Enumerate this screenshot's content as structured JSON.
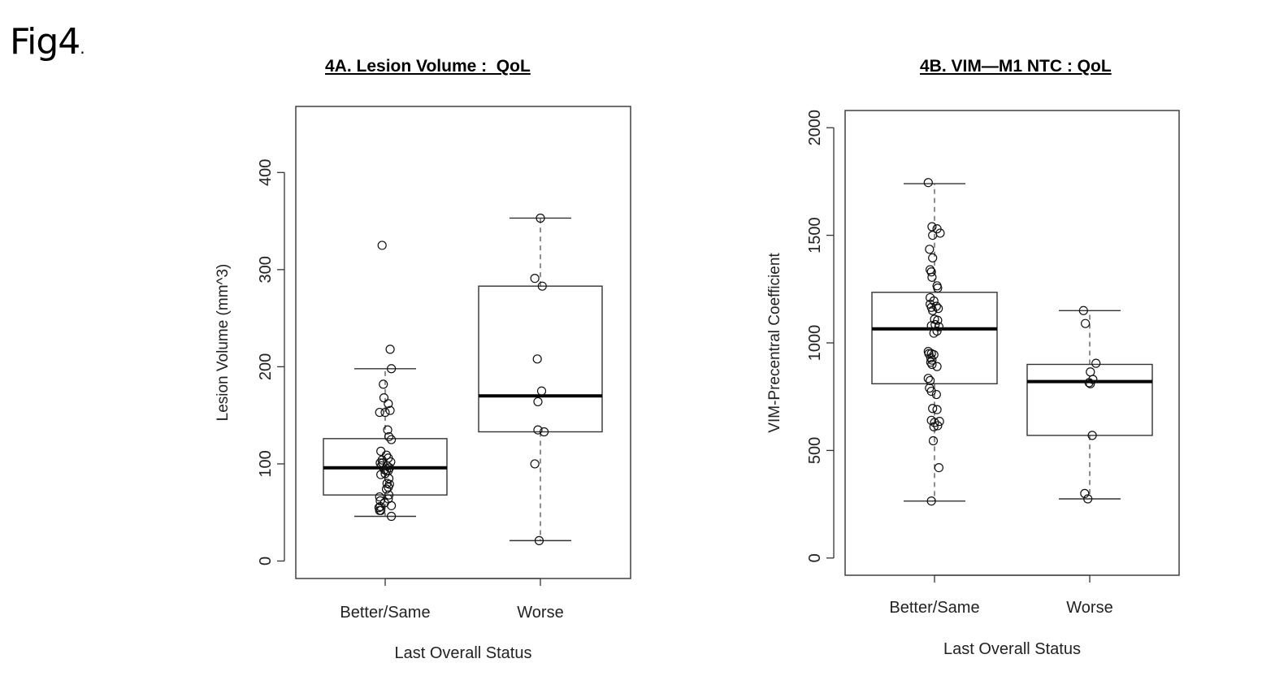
{
  "figure_label": "Fig4",
  "figure_label_dot": ".",
  "chart_data": [
    {
      "type": "box",
      "title": "4A. Lesion Volume :  QoL",
      "xlabel": "Last Overall Status",
      "ylabel": "Lesion Volume (mm^3)",
      "ylim": [
        -18,
        468
      ],
      "yticks": [
        0,
        100,
        200,
        300,
        400
      ],
      "categories": [
        "Better/Same",
        "Worse"
      ],
      "boxes": [
        {
          "name": "Better/Same",
          "whisker_low": 46,
          "q1": 68,
          "median": 96,
          "q3": 126,
          "whisker_high": 198
        },
        {
          "name": "Worse",
          "whisker_low": 21,
          "q1": 133,
          "median": 170,
          "q3": 283,
          "whisker_high": 353
        }
      ],
      "points": [
        [
          {
            "dx": -0.05,
            "y": 325
          },
          {
            "dx": 0.08,
            "y": 218
          },
          {
            "dx": 0.1,
            "y": 198
          },
          {
            "dx": -0.03,
            "y": 182
          },
          {
            "dx": -0.02,
            "y": 168
          },
          {
            "dx": 0.05,
            "y": 162
          },
          {
            "dx": -0.09,
            "y": 153
          },
          {
            "dx": 0.08,
            "y": 155
          },
          {
            "dx": 0.0,
            "y": 153
          },
          {
            "dx": 0.04,
            "y": 135
          },
          {
            "dx": 0.06,
            "y": 128
          },
          {
            "dx": 0.1,
            "y": 125
          },
          {
            "dx": -0.07,
            "y": 113
          },
          {
            "dx": 0.02,
            "y": 109
          },
          {
            "dx": 0.05,
            "y": 106
          },
          {
            "dx": -0.05,
            "y": 104
          },
          {
            "dx": -0.08,
            "y": 101
          },
          {
            "dx": -0.04,
            "y": 101
          },
          {
            "dx": 0.09,
            "y": 102
          },
          {
            "dx": -0.06,
            "y": 98
          },
          {
            "dx": 0.03,
            "y": 98
          },
          {
            "dx": 0.07,
            "y": 96
          },
          {
            "dx": -0.01,
            "y": 94
          },
          {
            "dx": 0.02,
            "y": 93
          },
          {
            "dx": 0.05,
            "y": 93
          },
          {
            "dx": -0.07,
            "y": 89
          },
          {
            "dx": 0.0,
            "y": 90
          },
          {
            "dx": 0.06,
            "y": 85
          },
          {
            "dx": 0.03,
            "y": 80
          },
          {
            "dx": 0.07,
            "y": 79
          },
          {
            "dx": 0.05,
            "y": 76
          },
          {
            "dx": 0.02,
            "y": 74
          },
          {
            "dx": 0.06,
            "y": 68
          },
          {
            "dx": -0.09,
            "y": 66
          },
          {
            "dx": 0.05,
            "y": 64
          },
          {
            "dx": -0.08,
            "y": 62
          },
          {
            "dx": -0.01,
            "y": 60
          },
          {
            "dx": 0.1,
            "y": 57
          },
          {
            "dx": -0.08,
            "y": 56
          },
          {
            "dx": -0.1,
            "y": 55
          },
          {
            "dx": -0.09,
            "y": 52
          },
          {
            "dx": -0.07,
            "y": 52
          },
          {
            "dx": 0.1,
            "y": 46
          }
        ],
        [
          {
            "dx": 0.0,
            "y": 353
          },
          {
            "dx": -0.09,
            "y": 291
          },
          {
            "dx": 0.03,
            "y": 283
          },
          {
            "dx": -0.05,
            "y": 208
          },
          {
            "dx": 0.02,
            "y": 175
          },
          {
            "dx": -0.04,
            "y": 164
          },
          {
            "dx": -0.04,
            "y": 135
          },
          {
            "dx": 0.06,
            "y": 133
          },
          {
            "dx": -0.09,
            "y": 100
          },
          {
            "dx": -0.02,
            "y": 21
          }
        ]
      ]
    },
    {
      "type": "box",
      "title": "4B. VIM—M1 NTC : QoL",
      "xlabel": "Last Overall Status",
      "ylabel": "VIM-Precentral Coefficient",
      "ylim": [
        -80,
        2080
      ],
      "yticks": [
        0,
        500,
        1000,
        1500,
        2000
      ],
      "categories": [
        "Better/Same",
        "Worse"
      ],
      "boxes": [
        {
          "name": "Better/Same",
          "whisker_low": 265,
          "q1": 810,
          "median": 1065,
          "q3": 1235,
          "whisker_high": 1740
        },
        {
          "name": "Worse",
          "whisker_low": 275,
          "q1": 570,
          "median": 820,
          "q3": 900,
          "whisker_high": 1150
        }
      ],
      "points": [
        [
          {
            "dx": -0.1,
            "y": 1745
          },
          {
            "dx": -0.04,
            "y": 1540
          },
          {
            "dx": 0.04,
            "y": 1530
          },
          {
            "dx": 0.09,
            "y": 1510
          },
          {
            "dx": -0.03,
            "y": 1500
          },
          {
            "dx": -0.08,
            "y": 1435
          },
          {
            "dx": -0.03,
            "y": 1395
          },
          {
            "dx": -0.07,
            "y": 1340
          },
          {
            "dx": -0.05,
            "y": 1330
          },
          {
            "dx": -0.04,
            "y": 1305
          },
          {
            "dx": 0.04,
            "y": 1265
          },
          {
            "dx": 0.05,
            "y": 1255
          },
          {
            "dx": -0.07,
            "y": 1210
          },
          {
            "dx": -0.01,
            "y": 1195
          },
          {
            "dx": -0.07,
            "y": 1180
          },
          {
            "dx": -0.05,
            "y": 1165
          },
          {
            "dx": 0.03,
            "y": 1170
          },
          {
            "dx": 0.06,
            "y": 1160
          },
          {
            "dx": -0.03,
            "y": 1150
          },
          {
            "dx": 0.05,
            "y": 1105
          },
          {
            "dx": 0.0,
            "y": 1110
          },
          {
            "dx": 0.01,
            "y": 1085
          },
          {
            "dx": -0.05,
            "y": 1080
          },
          {
            "dx": 0.07,
            "y": 1075
          },
          {
            "dx": 0.04,
            "y": 1055
          },
          {
            "dx": -0.01,
            "y": 1045
          },
          {
            "dx": -0.1,
            "y": 960
          },
          {
            "dx": -0.09,
            "y": 950
          },
          {
            "dx": -0.05,
            "y": 950
          },
          {
            "dx": -0.01,
            "y": 945
          },
          {
            "dx": -0.06,
            "y": 930
          },
          {
            "dx": -0.04,
            "y": 920
          },
          {
            "dx": -0.06,
            "y": 910
          },
          {
            "dx": -0.04,
            "y": 900
          },
          {
            "dx": 0.04,
            "y": 890
          },
          {
            "dx": -0.1,
            "y": 835
          },
          {
            "dx": -0.07,
            "y": 825
          },
          {
            "dx": -0.08,
            "y": 790
          },
          {
            "dx": -0.05,
            "y": 775
          },
          {
            "dx": 0.03,
            "y": 760
          },
          {
            "dx": -0.03,
            "y": 695
          },
          {
            "dx": 0.04,
            "y": 690
          },
          {
            "dx": -0.05,
            "y": 640
          },
          {
            "dx": 0.08,
            "y": 635
          },
          {
            "dx": 0.0,
            "y": 630
          },
          {
            "dx": 0.05,
            "y": 615
          },
          {
            "dx": -0.01,
            "y": 610
          },
          {
            "dx": -0.02,
            "y": 545
          },
          {
            "dx": 0.07,
            "y": 420
          },
          {
            "dx": -0.05,
            "y": 265
          }
        ],
        [
          {
            "dx": -0.1,
            "y": 1150
          },
          {
            "dx": -0.07,
            "y": 1090
          },
          {
            "dx": 0.1,
            "y": 905
          },
          {
            "dx": 0.01,
            "y": 865
          },
          {
            "dx": 0.05,
            "y": 830
          },
          {
            "dx": -0.01,
            "y": 815
          },
          {
            "dx": 0.01,
            "y": 810
          },
          {
            "dx": 0.04,
            "y": 570
          },
          {
            "dx": -0.08,
            "y": 300
          },
          {
            "dx": -0.03,
            "y": 275
          }
        ]
      ]
    }
  ]
}
